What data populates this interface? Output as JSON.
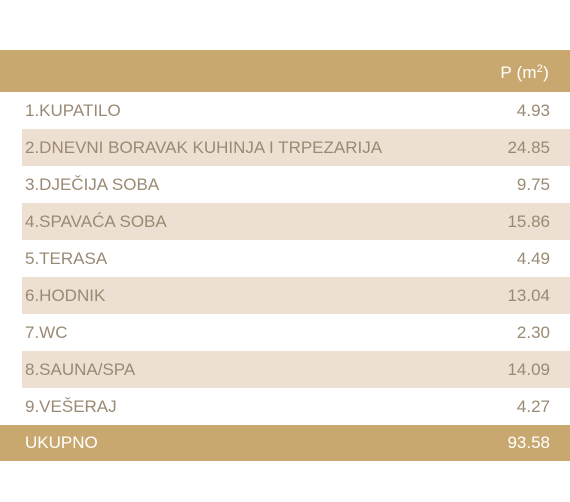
{
  "table": {
    "header": {
      "area_label_prefix": "P (m",
      "area_label_sup": "2",
      "area_label_suffix": ")"
    },
    "rows": [
      {
        "room": "1.KUPATILO",
        "area": "4.93"
      },
      {
        "room": "2.DNEVNI BORAVAK KUHINJA I TRPEZARIJA",
        "area": "24.85"
      },
      {
        "room": "3.DJEČIJA SOBA",
        "area": "9.75"
      },
      {
        "room": "4.SPAVAĆA SOBA",
        "area": "15.86"
      },
      {
        "room": "5.TERASA",
        "area": "4.49"
      },
      {
        "room": "6.HODNIK",
        "area": "13.04"
      },
      {
        "room": "7.WC",
        "area": "2.30"
      },
      {
        "room": "8.SAUNA/SPA",
        "area": "14.09"
      },
      {
        "room": "9.VEŠERAJ",
        "area": "4.27"
      }
    ],
    "total": {
      "room": "UKUPNO",
      "area": "93.58"
    }
  },
  "colors": {
    "header_bg": "#c9a86f",
    "row_shade": "#eedfd3",
    "text": "#9a8a74",
    "header_text": "#ffffff"
  }
}
